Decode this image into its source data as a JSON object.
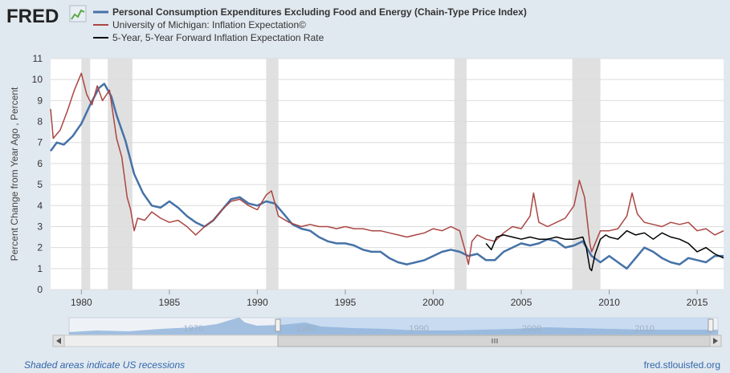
{
  "brand": {
    "name": "FRED"
  },
  "chart_data": {
    "type": "line",
    "ylabel": "Percent Change from Year Ago , Percent",
    "xlim": [
      1978.25,
      2016.5
    ],
    "ylim": [
      0,
      11
    ],
    "y_ticks": [
      0,
      1,
      2,
      3,
      4,
      5,
      6,
      7,
      8,
      9,
      10,
      11
    ],
    "x_ticks": [
      1980,
      1985,
      1990,
      1995,
      2000,
      2005,
      2010,
      2015
    ],
    "recessions": [
      [
        1980.0,
        1980.5
      ],
      [
        1981.5,
        1982.9
      ],
      [
        1990.5,
        1991.2
      ],
      [
        2001.2,
        2001.9
      ],
      [
        2007.9,
        2009.5
      ]
    ],
    "series": [
      {
        "name": "Personal Consumption Expenditures Excluding Food and Energy (Chain-Type Price Index)",
        "color": "#4572a7",
        "points": [
          [
            1978.25,
            6.6
          ],
          [
            1978.6,
            7.0
          ],
          [
            1979.0,
            6.9
          ],
          [
            1979.5,
            7.3
          ],
          [
            1980.0,
            7.9
          ],
          [
            1980.5,
            8.8
          ],
          [
            1981.0,
            9.6
          ],
          [
            1981.3,
            9.8
          ],
          [
            1981.7,
            9.2
          ],
          [
            1982.0,
            8.3
          ],
          [
            1982.5,
            7.1
          ],
          [
            1983.0,
            5.5
          ],
          [
            1983.5,
            4.6
          ],
          [
            1984.0,
            4.0
          ],
          [
            1984.5,
            3.9
          ],
          [
            1985.0,
            4.2
          ],
          [
            1985.5,
            3.9
          ],
          [
            1986.0,
            3.5
          ],
          [
            1986.5,
            3.2
          ],
          [
            1987.0,
            3.0
          ],
          [
            1987.5,
            3.3
          ],
          [
            1988.0,
            3.8
          ],
          [
            1988.5,
            4.3
          ],
          [
            1989.0,
            4.4
          ],
          [
            1989.5,
            4.1
          ],
          [
            1990.0,
            4.0
          ],
          [
            1990.5,
            4.2
          ],
          [
            1991.0,
            4.1
          ],
          [
            1991.5,
            3.6
          ],
          [
            1992.0,
            3.1
          ],
          [
            1992.5,
            2.9
          ],
          [
            1993.0,
            2.8
          ],
          [
            1993.5,
            2.5
          ],
          [
            1994.0,
            2.3
          ],
          [
            1994.5,
            2.2
          ],
          [
            1995.0,
            2.2
          ],
          [
            1995.5,
            2.1
          ],
          [
            1996.0,
            1.9
          ],
          [
            1996.5,
            1.8
          ],
          [
            1997.0,
            1.8
          ],
          [
            1997.5,
            1.5
          ],
          [
            1998.0,
            1.3
          ],
          [
            1998.5,
            1.2
          ],
          [
            1999.0,
            1.3
          ],
          [
            1999.5,
            1.4
          ],
          [
            2000.0,
            1.6
          ],
          [
            2000.5,
            1.8
          ],
          [
            2001.0,
            1.9
          ],
          [
            2001.5,
            1.8
          ],
          [
            2002.0,
            1.6
          ],
          [
            2002.5,
            1.7
          ],
          [
            2003.0,
            1.4
          ],
          [
            2003.5,
            1.4
          ],
          [
            2004.0,
            1.8
          ],
          [
            2004.5,
            2.0
          ],
          [
            2005.0,
            2.2
          ],
          [
            2005.5,
            2.1
          ],
          [
            2006.0,
            2.2
          ],
          [
            2006.5,
            2.4
          ],
          [
            2007.0,
            2.3
          ],
          [
            2007.5,
            2.0
          ],
          [
            2008.0,
            2.1
          ],
          [
            2008.5,
            2.3
          ],
          [
            2009.0,
            1.6
          ],
          [
            2009.5,
            1.3
          ],
          [
            2010.0,
            1.6
          ],
          [
            2010.5,
            1.3
          ],
          [
            2011.0,
            1.0
          ],
          [
            2011.5,
            1.5
          ],
          [
            2012.0,
            2.0
          ],
          [
            2012.5,
            1.8
          ],
          [
            2013.0,
            1.5
          ],
          [
            2013.5,
            1.3
          ],
          [
            2014.0,
            1.2
          ],
          [
            2014.5,
            1.5
          ],
          [
            2015.0,
            1.4
          ],
          [
            2015.5,
            1.3
          ],
          [
            2016.0,
            1.6
          ],
          [
            2016.5,
            1.6
          ]
        ]
      },
      {
        "name": "University of Michigan: Inflation Expectation©",
        "color": "#aa4643",
        "points": [
          [
            1978.25,
            8.6
          ],
          [
            1978.4,
            7.2
          ],
          [
            1978.8,
            7.6
          ],
          [
            1979.2,
            8.5
          ],
          [
            1979.6,
            9.5
          ],
          [
            1980.0,
            10.3
          ],
          [
            1980.3,
            9.3
          ],
          [
            1980.6,
            8.8
          ],
          [
            1980.9,
            9.7
          ],
          [
            1981.2,
            9.0
          ],
          [
            1981.6,
            9.5
          ],
          [
            1982.0,
            7.2
          ],
          [
            1982.3,
            6.3
          ],
          [
            1982.6,
            4.4
          ],
          [
            1982.8,
            3.8
          ],
          [
            1983.0,
            2.8
          ],
          [
            1983.2,
            3.4
          ],
          [
            1983.6,
            3.3
          ],
          [
            1984.0,
            3.7
          ],
          [
            1984.5,
            3.4
          ],
          [
            1985.0,
            3.2
          ],
          [
            1985.5,
            3.3
          ],
          [
            1986.0,
            3.0
          ],
          [
            1986.5,
            2.6
          ],
          [
            1987.0,
            3.0
          ],
          [
            1987.5,
            3.3
          ],
          [
            1988.0,
            3.8
          ],
          [
            1988.5,
            4.2
          ],
          [
            1989.0,
            4.3
          ],
          [
            1989.5,
            4.0
          ],
          [
            1990.0,
            3.8
          ],
          [
            1990.5,
            4.5
          ],
          [
            1990.8,
            4.7
          ],
          [
            1991.2,
            3.5
          ],
          [
            1991.8,
            3.2
          ],
          [
            1992.5,
            3.0
          ],
          [
            1993.0,
            3.1
          ],
          [
            1993.5,
            3.0
          ],
          [
            1994.0,
            3.0
          ],
          [
            1994.5,
            2.9
          ],
          [
            1995.0,
            3.0
          ],
          [
            1995.5,
            2.9
          ],
          [
            1996.0,
            2.9
          ],
          [
            1996.5,
            2.8
          ],
          [
            1997.0,
            2.8
          ],
          [
            1997.5,
            2.7
          ],
          [
            1998.0,
            2.6
          ],
          [
            1998.5,
            2.5
          ],
          [
            1999.0,
            2.6
          ],
          [
            1999.5,
            2.7
          ],
          [
            2000.0,
            2.9
          ],
          [
            2000.5,
            2.8
          ],
          [
            2001.0,
            3.0
          ],
          [
            2001.5,
            2.8
          ],
          [
            2001.8,
            1.9
          ],
          [
            2002.0,
            1.2
          ],
          [
            2002.2,
            2.3
          ],
          [
            2002.5,
            2.6
          ],
          [
            2003.0,
            2.4
          ],
          [
            2003.5,
            2.3
          ],
          [
            2004.0,
            2.7
          ],
          [
            2004.5,
            3.0
          ],
          [
            2005.0,
            2.9
          ],
          [
            2005.5,
            3.5
          ],
          [
            2005.7,
            4.6
          ],
          [
            2006.0,
            3.2
          ],
          [
            2006.5,
            3.0
          ],
          [
            2007.0,
            3.2
          ],
          [
            2007.5,
            3.4
          ],
          [
            2008.0,
            4.0
          ],
          [
            2008.3,
            5.2
          ],
          [
            2008.6,
            4.4
          ],
          [
            2008.9,
            2.2
          ],
          [
            2009.0,
            1.8
          ],
          [
            2009.5,
            2.8
          ],
          [
            2010.0,
            2.8
          ],
          [
            2010.5,
            2.9
          ],
          [
            2011.0,
            3.5
          ],
          [
            2011.3,
            4.6
          ],
          [
            2011.6,
            3.6
          ],
          [
            2012.0,
            3.2
          ],
          [
            2012.5,
            3.1
          ],
          [
            2013.0,
            3.0
          ],
          [
            2013.5,
            3.2
          ],
          [
            2014.0,
            3.1
          ],
          [
            2014.5,
            3.2
          ],
          [
            2015.0,
            2.8
          ],
          [
            2015.5,
            2.9
          ],
          [
            2016.0,
            2.6
          ],
          [
            2016.5,
            2.8
          ]
        ]
      },
      {
        "name": "5-Year, 5-Year Forward Inflation Expectation Rate",
        "color": "#000000",
        "points": [
          [
            2003.0,
            2.2
          ],
          [
            2003.3,
            1.9
          ],
          [
            2003.6,
            2.5
          ],
          [
            2004.0,
            2.6
          ],
          [
            2004.5,
            2.5
          ],
          [
            2005.0,
            2.4
          ],
          [
            2005.5,
            2.5
          ],
          [
            2006.0,
            2.4
          ],
          [
            2006.5,
            2.4
          ],
          [
            2007.0,
            2.5
          ],
          [
            2007.5,
            2.4
          ],
          [
            2008.0,
            2.4
          ],
          [
            2008.5,
            2.5
          ],
          [
            2008.7,
            2.0
          ],
          [
            2008.9,
            1.0
          ],
          [
            2009.0,
            0.9
          ],
          [
            2009.2,
            1.7
          ],
          [
            2009.5,
            2.4
          ],
          [
            2009.8,
            2.6
          ],
          [
            2010.0,
            2.5
          ],
          [
            2010.5,
            2.4
          ],
          [
            2011.0,
            2.8
          ],
          [
            2011.5,
            2.6
          ],
          [
            2012.0,
            2.7
          ],
          [
            2012.5,
            2.4
          ],
          [
            2013.0,
            2.7
          ],
          [
            2013.5,
            2.5
          ],
          [
            2014.0,
            2.4
          ],
          [
            2014.5,
            2.2
          ],
          [
            2015.0,
            1.8
          ],
          [
            2015.5,
            2.0
          ],
          [
            2016.0,
            1.7
          ],
          [
            2016.5,
            1.5
          ]
        ]
      }
    ],
    "navigator_labels": [
      "1970",
      "1980",
      "1990",
      "2000",
      "2010"
    ]
  },
  "footer": {
    "note": "Shaded areas indicate US recessions",
    "source": "fred.stlouisfed.org"
  }
}
